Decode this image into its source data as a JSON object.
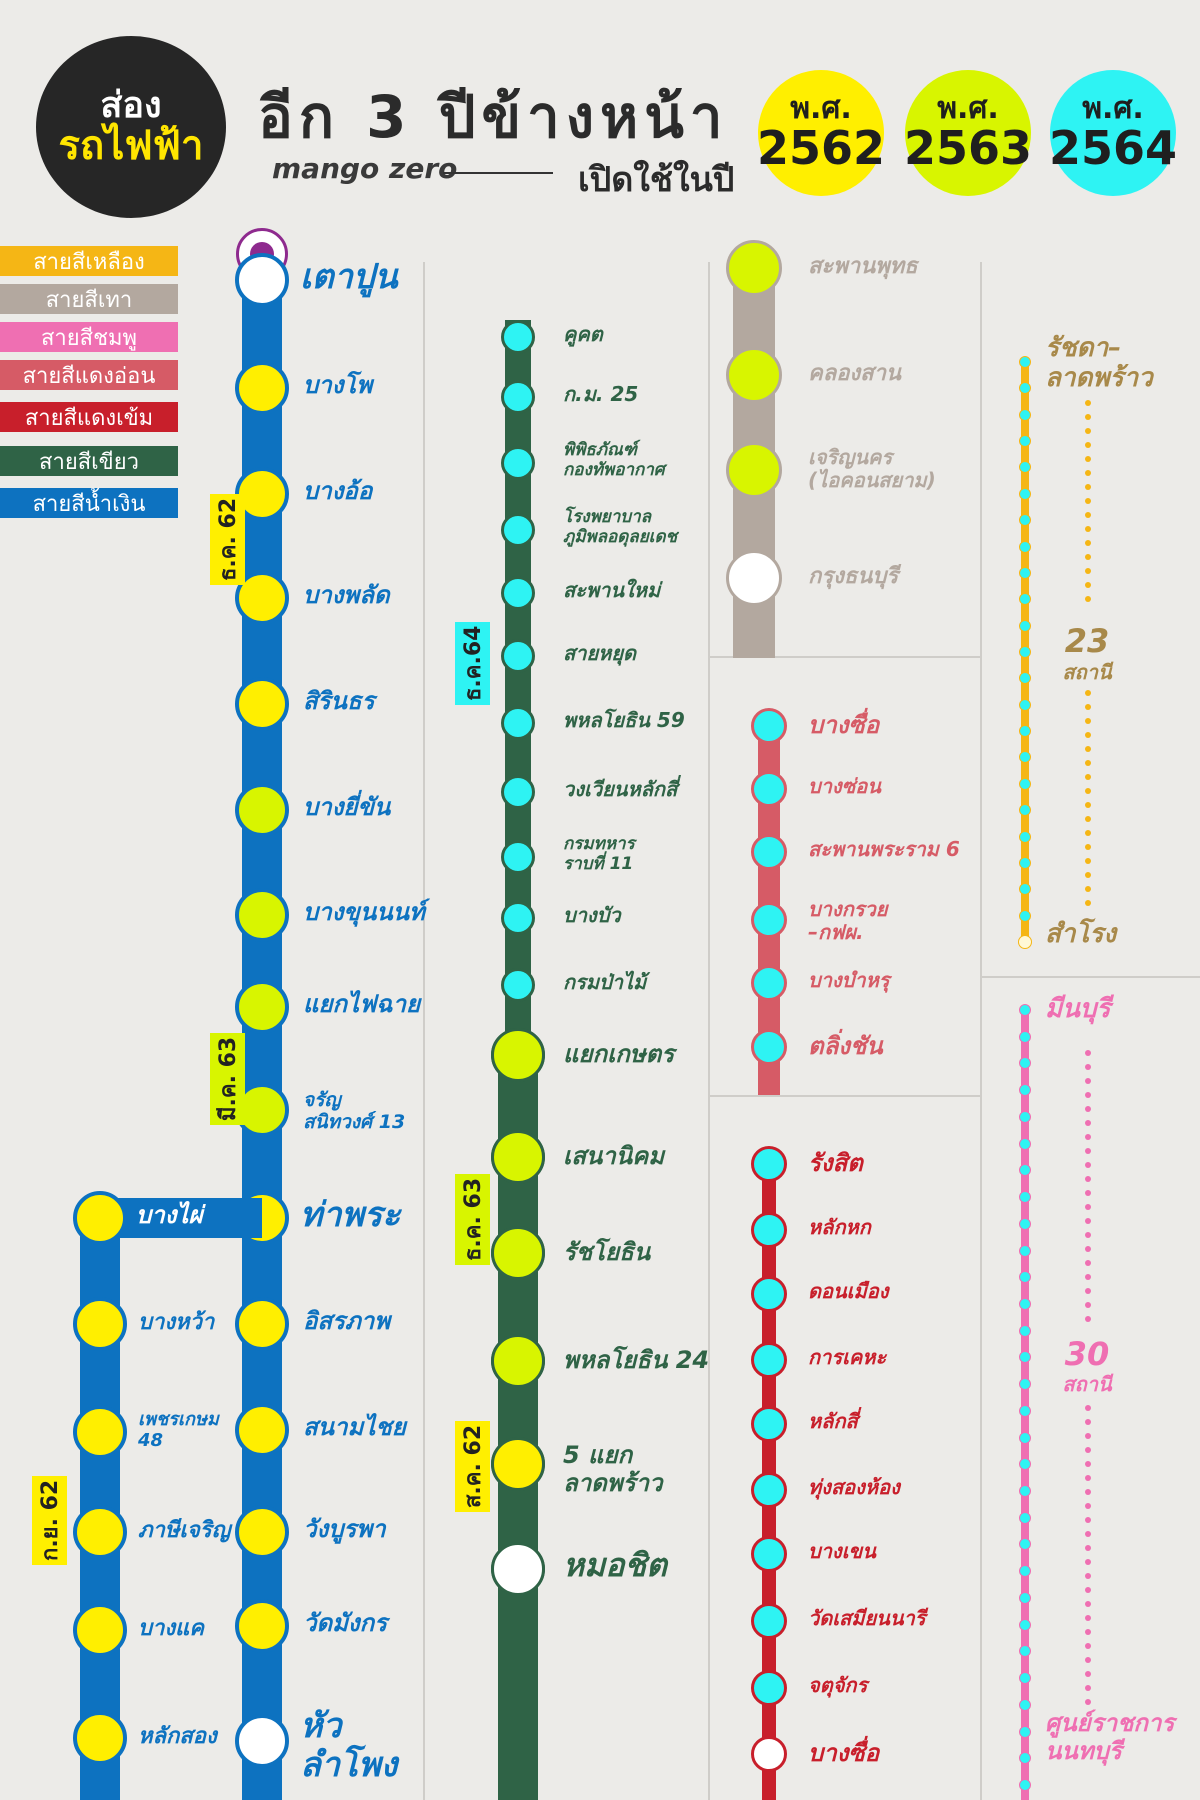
{
  "header": {
    "logo_line1": "ส่อง",
    "logo_line2": "รถไฟฟ้า",
    "headline": "อีก 3 ปีข้างหน้า",
    "brand": "mango zero",
    "subtitle": "เปิดใช้ในปี",
    "years": [
      {
        "era": "พ.ศ.",
        "year": "2562",
        "color": "#ffef00"
      },
      {
        "era": "พ.ศ.",
        "year": "2563",
        "color": "#d8f500"
      },
      {
        "era": "พ.ศ.",
        "year": "2564",
        "color": "#2ef3f3"
      }
    ]
  },
  "legend": [
    {
      "label": "สายสีเหลือง",
      "color": "#f5b615"
    },
    {
      "label": "สายสีเทา",
      "color": "#b3a89f"
    },
    {
      "label": "สายสีชมพู",
      "color": "#ef6fb2"
    },
    {
      "label": "สายสีแดงอ่อน",
      "color": "#d65b66"
    },
    {
      "label": "สายสีแดงเข้ม",
      "color": "#c81f2b"
    },
    {
      "label": "สายสีเขียว",
      "color": "#2f6346"
    },
    {
      "label": "สายสีน้ำเงิน",
      "color": "#0d72c0"
    }
  ],
  "colors": {
    "blue_line": "#0d72c0",
    "green_line": "#2f6346",
    "grey_line": "#b3a89f",
    "light_red_line": "#d65b66",
    "dark_red_line": "#c81f2b",
    "yellow_line": "#f5b615",
    "pink_line": "#ef6fb2",
    "station_2562": "#ffef00",
    "station_2563": "#d8f500",
    "station_2564": "#2ef3f3"
  },
  "blue_line": {
    "date_1": "ธ.ค. 62",
    "date_2": "มี.ค. 63",
    "date_branch": "ก.ย. 62",
    "main_stations": [
      "เตาปูน",
      "บางโพ",
      "บางอ้อ",
      "บางพลัด",
      "สิรินธร",
      "บางยี่ขัน",
      "บางขุนนนท์",
      "แยกไฟฉาย",
      "จรัญ\nสนิทวงศ์ 13",
      "ท่าพระ",
      "อิสรภาพ",
      "สนามไชย",
      "วังบูรพา",
      "วัดมังกร",
      "หัว\nลำโพง"
    ],
    "branch_stations": [
      "บางไผ่",
      "บางหว้า",
      "เพชรเกษม\n48",
      "ภาษีเจริญ",
      "บางแค",
      "หลักสอง"
    ]
  },
  "green_line": {
    "date_1": "ธ.ค.64",
    "date_2": "ธ.ค. 63",
    "date_3": "ส.ค. 62",
    "stations": [
      "คูคต",
      "ก.ม. 25",
      "พิพิธภัณฑ์\nกองทัพอากาศ",
      "โรงพยาบาล\nภูมิพลอดุลยเดช",
      "สะพานใหม่",
      "สายหยุด",
      "พหลโยธิน 59",
      "วงเวียนหลักสี่",
      "กรมทหาร\nราบที่ 11",
      "บางบัว",
      "กรมป่าไม้",
      "แยกเกษตร",
      "เสนานิคม",
      "รัชโยธิน",
      "พหลโยธิน 24",
      "5 แยก\nลาดพร้าว",
      "หมอชิต"
    ]
  },
  "grey_line": {
    "stations": [
      "สะพานพุทธ",
      "คลองสาน",
      "เจริญนคร\n(ไอคอนสยาม)",
      "กรุงธนบุรี"
    ]
  },
  "light_red_line": {
    "stations": [
      "บางซื่อ",
      "บางซ่อน",
      "สะพานพระราม 6",
      "บางกรวย\n–กฟผ.",
      "บางบำหรุ",
      "ตลิ่งชัน"
    ]
  },
  "dark_red_line": {
    "stations": [
      "รังสิต",
      "หลักหก",
      "ดอนเมือง",
      "การเคหะ",
      "หลักสี่",
      "ทุ่งสองห้อง",
      "บางเขน",
      "วัดเสมียนนารี",
      "จตุจักร",
      "บางซื่อ"
    ]
  },
  "yellow_line": {
    "start": "รัชดา–\nลาดพร้าว",
    "end": "สำโรง",
    "count": "23",
    "count_unit": "สถานี"
  },
  "pink_line": {
    "start": "มีนบุรี",
    "end": "ศูนย์ราชการ\nนนทบุรี",
    "count": "30",
    "count_unit": "สถานี"
  }
}
